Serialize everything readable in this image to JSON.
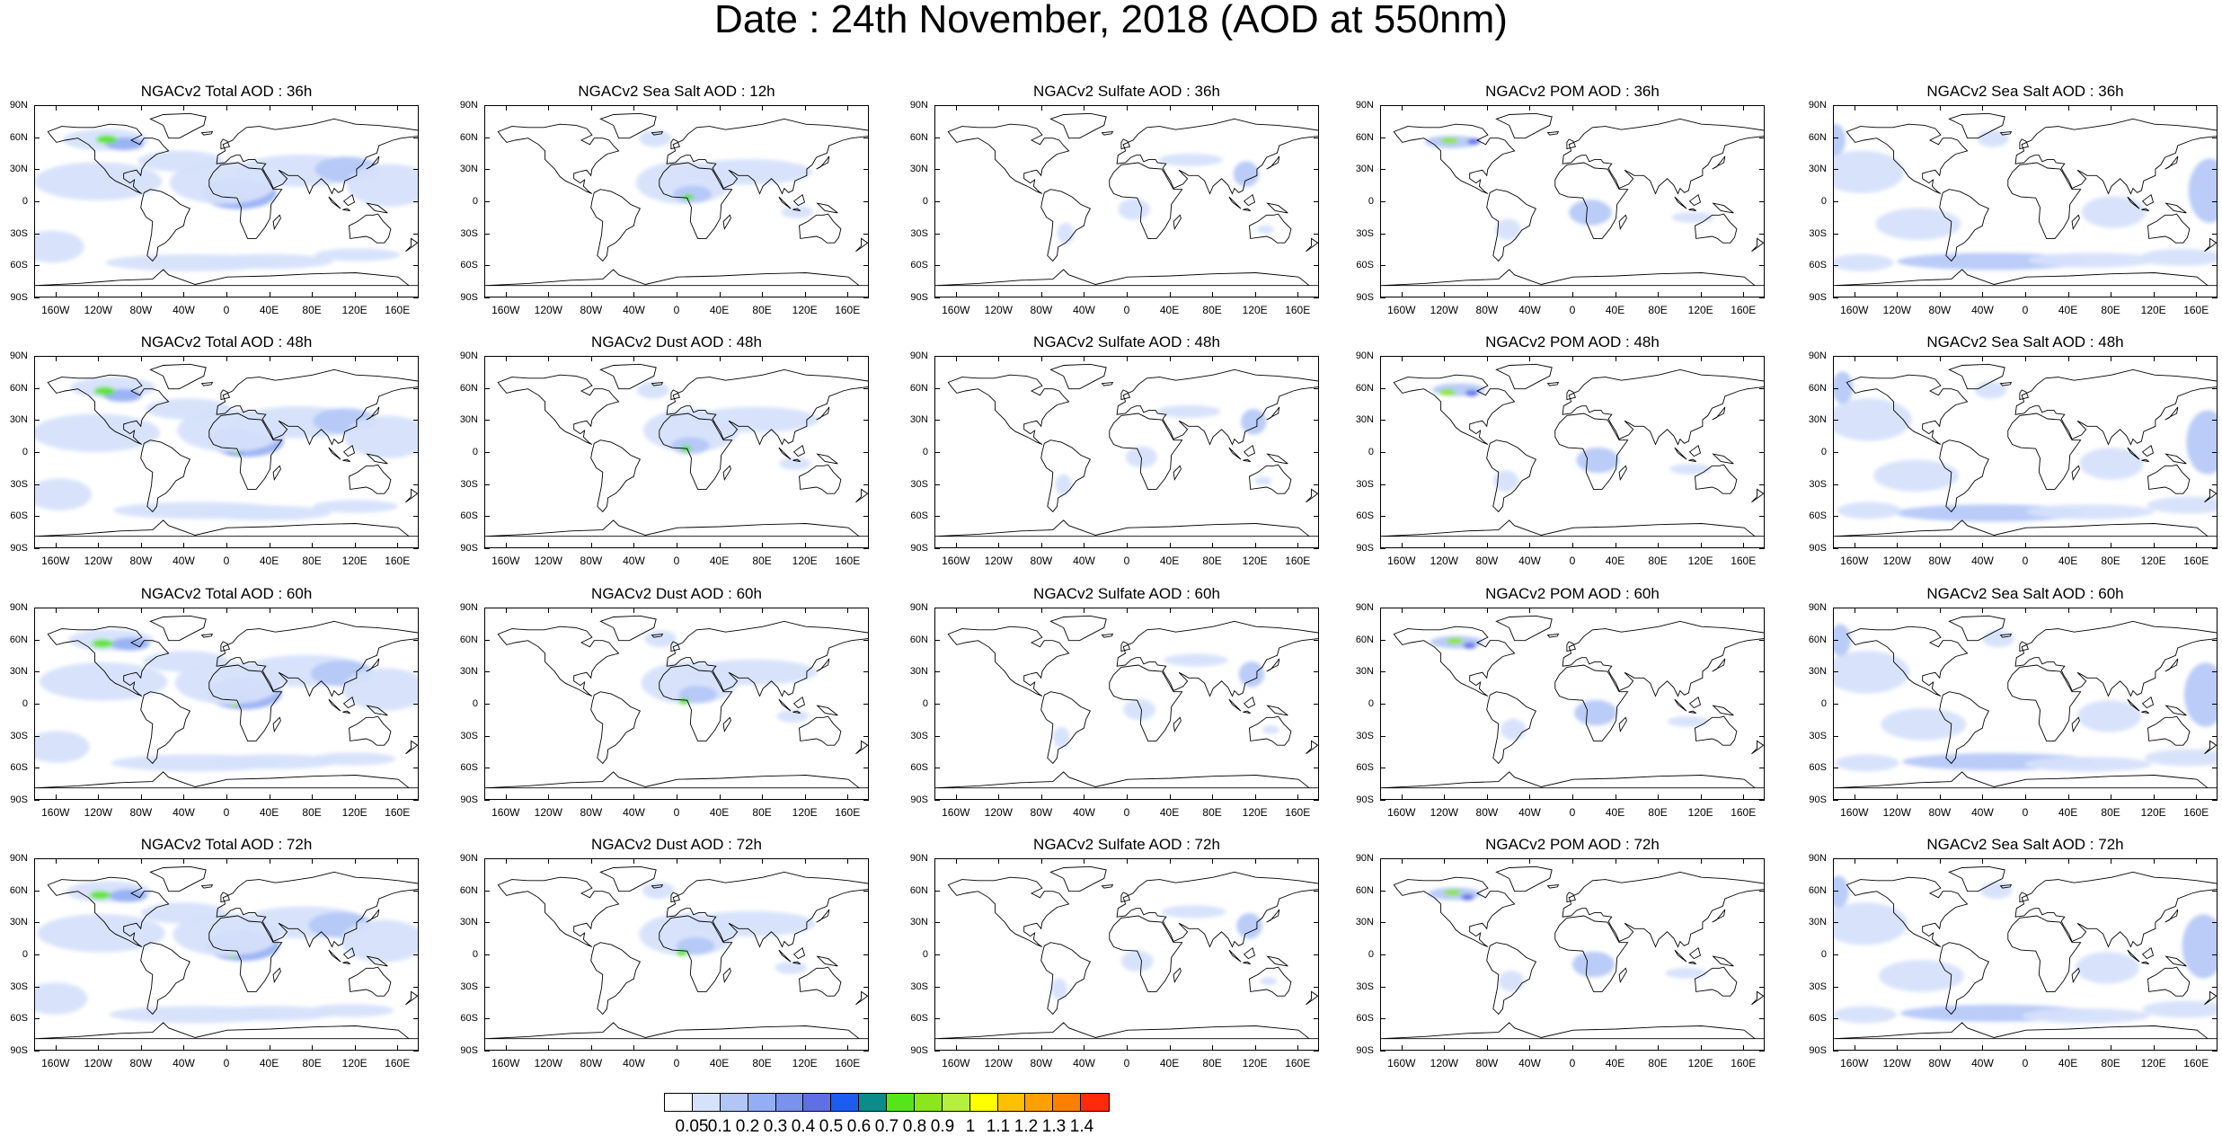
{
  "title": "Date : 24th November, 2018 (AOD at 550nm)",
  "lat_labels": [
    "90N",
    "60N",
    "30N",
    "0",
    "30S",
    "60S",
    "90S"
  ],
  "lon_labels": [
    "160W",
    "120W",
    "80W",
    "40W",
    "0",
    "40E",
    "80E",
    "120E",
    "160E"
  ],
  "panels": [
    [
      "NGACv2 Total AOD : 36h",
      "NGACv2 Sea Salt  AOD : 12h",
      "NGACv2 Sulfate AOD : 36h",
      "NGACv2 POM AOD : 36h",
      "NGACv2 Sea Salt AOD : 36h"
    ],
    [
      "NGACv2 Total AOD : 48h",
      "NGACv2 Dust AOD : 48h",
      "NGACv2 Sulfate AOD : 48h",
      "NGACv2 POM AOD : 48h",
      "NGACv2 Sea Salt AOD : 48h"
    ],
    [
      "NGACv2 Total AOD : 60h",
      "NGACv2 Dust AOD : 60h",
      "NGACv2 Sulfate AOD : 60h",
      "NGACv2 POM AOD : 60h",
      "NGACv2 Sea Salt AOD : 60h"
    ],
    [
      "NGACv2 Total AOD : 72h",
      "NGACv2 Dust AOD : 72h",
      "NGACv2 Sulfate AOD : 72h",
      "NGACv2 POM AOD : 72h",
      "NGACv2 Sea Salt  AOD : 72h"
    ]
  ],
  "colorbar": {
    "labels": [
      "0.05",
      "0.1",
      "0.2",
      "0.3",
      "0.4",
      "0.5",
      "0.6",
      "0.7",
      "0.8",
      "0.9",
      "1",
      "1.1",
      "1.2",
      "1.3",
      "1.4"
    ],
    "colors": [
      "#ffffff",
      "#d6e2fb",
      "#b2c6f6",
      "#93aef2",
      "#7a92ec",
      "#5f6fe6",
      "#1c5cf3",
      "#0a8c8c",
      "#55e61a",
      "#8be61a",
      "#b4f03c",
      "#ffff00",
      "#ffc000",
      "#ffa000",
      "#ff7f00",
      "#ff2a0a"
    ]
  }
}
